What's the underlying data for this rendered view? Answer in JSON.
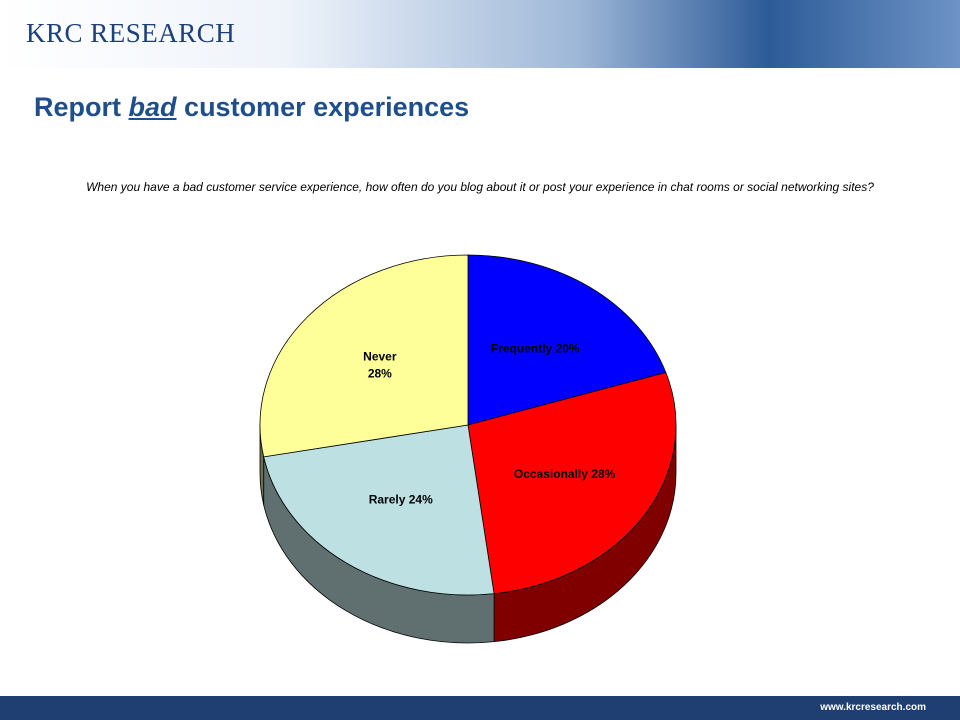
{
  "header": {
    "brand": "KRC RESEARCH",
    "footer": "www.krcresearch.com"
  },
  "chart_data": {
    "type": "pie",
    "title": [
      "Report",
      "bad",
      "customer experiences"
    ],
    "subtitle": "When you have a bad customer service experience, how often do you blog about it or post your experience in chat rooms or social networking sites?",
    "categories": [
      "Frequently",
      "Occasionally",
      "Rarely",
      "Never"
    ],
    "values": [
      20,
      28,
      24,
      28
    ],
    "value_labels": [
      "20%",
      "28%",
      "24%",
      "28%"
    ],
    "colors": [
      "#0000ff",
      "#ff0000",
      "#bde0e3",
      "#ffff99"
    ],
    "side_colors": [
      "#000080",
      "#800000",
      "#607070",
      "#6e6e50"
    ],
    "stacked_labels": [
      false,
      false,
      false,
      true
    ],
    "three_d": true
  }
}
